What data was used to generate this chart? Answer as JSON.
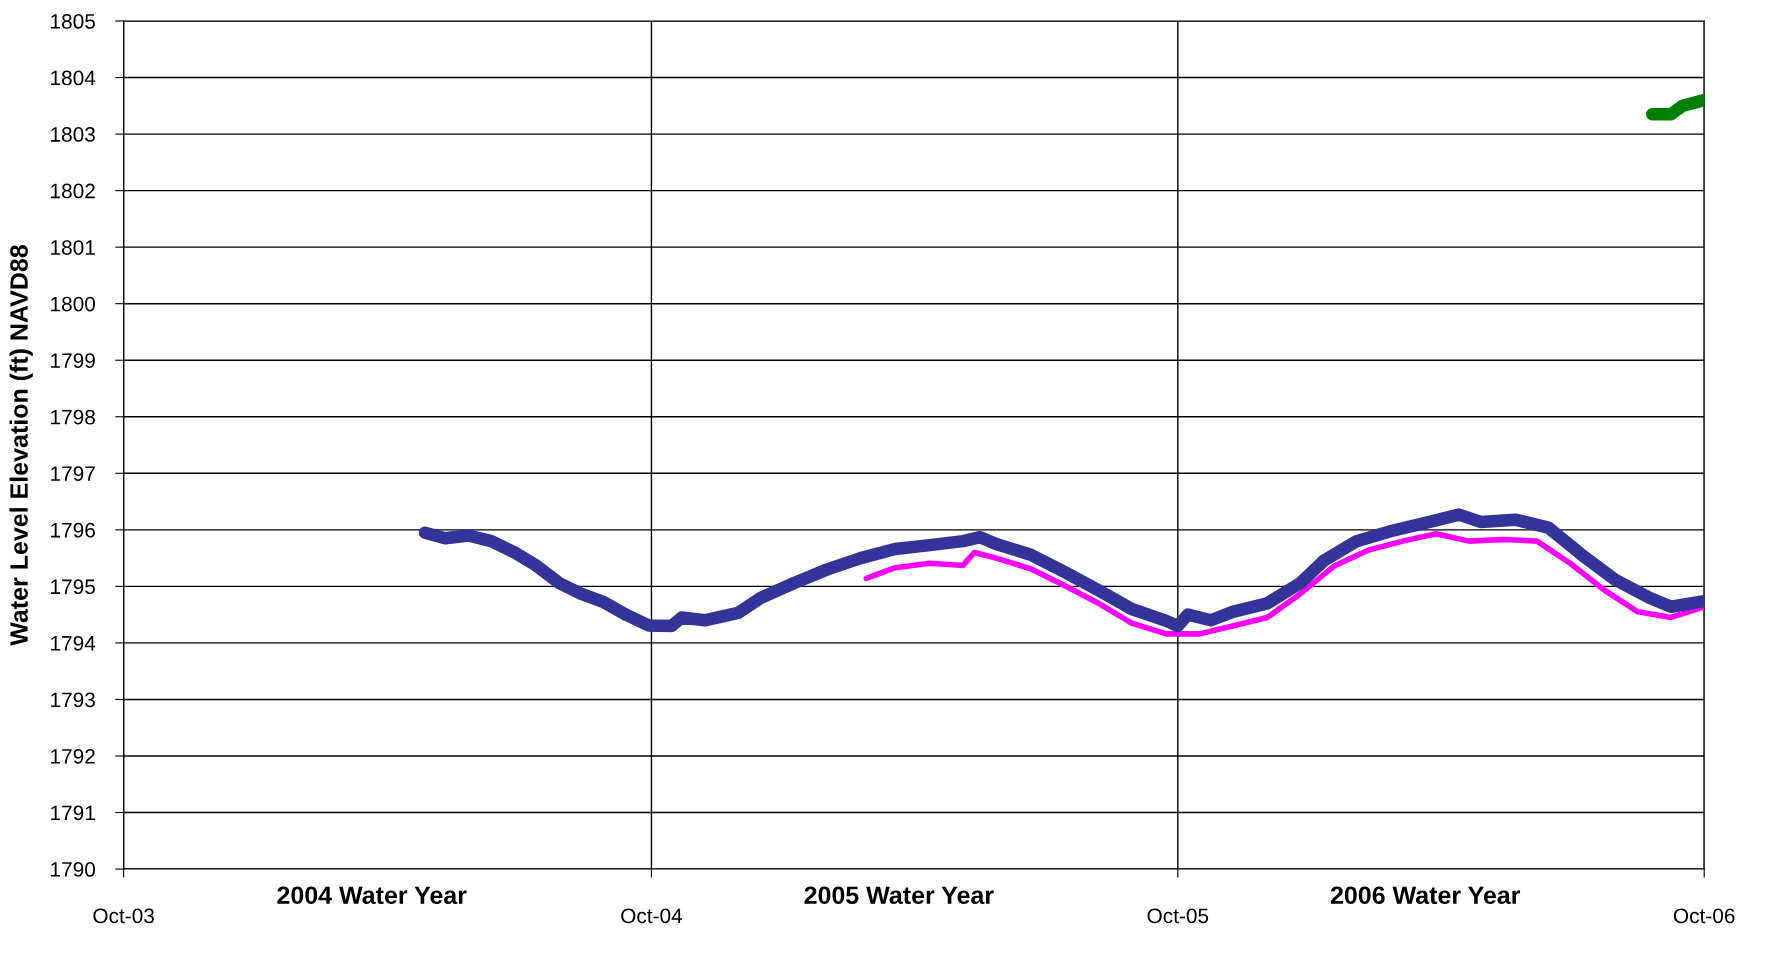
{
  "chart_data": {
    "type": "line",
    "ylabel": "Water Level Elevation (ft) NAVD88",
    "xlim": [
      "2003-10-01",
      "2006-10-01"
    ],
    "xticks": [
      {
        "value": "2003-10-01",
        "label": "Oct-03"
      },
      {
        "value": "2004-10-01",
        "label": "Oct-04"
      },
      {
        "value": "2005-10-01",
        "label": "Oct-05"
      },
      {
        "value": "2006-10-01",
        "label": "Oct-06"
      }
    ],
    "ylim": [
      1790,
      1805
    ],
    "yticks": [
      1790,
      1791,
      1792,
      1793,
      1794,
      1795,
      1796,
      1797,
      1798,
      1799,
      1800,
      1801,
      1802,
      1803,
      1804,
      1805
    ],
    "grid": true,
    "legend": false,
    "line_style": "solid",
    "marker": "none",
    "annotations": [
      "2004 Water Year",
      "2005 Water Year",
      "2006 Water Year"
    ],
    "series": [
      {
        "color": "#ff00ff",
        "x": [
          "2005-02-27",
          "2005-03-19",
          "2005-04-12",
          "2005-05-05",
          "2005-05-13",
          "2005-05-28",
          "2005-06-21",
          "2005-07-14",
          "2005-08-07",
          "2005-08-30",
          "2005-09-23",
          "2005-10-16",
          "2005-11-08",
          "2005-12-02",
          "2005-12-25",
          "2006-01-18",
          "2006-02-10",
          "2006-03-06",
          "2006-03-29",
          "2006-04-21",
          "2006-05-15",
          "2006-06-07",
          "2006-06-30",
          "2006-07-24",
          "2006-08-16",
          "2006-09-08",
          "2006-10-01"
        ],
        "values": [
          1795.14,
          1795.33,
          1795.41,
          1795.37,
          1795.6,
          1795.5,
          1795.31,
          1795.02,
          1794.7,
          1794.35,
          1794.16,
          1794.16,
          1794.3,
          1794.45,
          1794.87,
          1795.37,
          1795.64,
          1795.8,
          1795.93,
          1795.8,
          1795.83,
          1795.8,
          1795.41,
          1794.93,
          1794.55,
          1794.45,
          1794.64
        ]
      },
      {
        "color": "#333399",
        "x": [
          "2004-04-27",
          "2004-05-11",
          "2004-05-27",
          "2004-06-12",
          "2004-06-28",
          "2004-07-13",
          "2004-07-29",
          "2004-08-13",
          "2004-08-29",
          "2004-09-14",
          "2004-09-29",
          "2004-10-15",
          "2004-10-22",
          "2004-11-07",
          "2004-11-30",
          "2004-12-16",
          "2005-01-08",
          "2005-01-31",
          "2005-02-23",
          "2005-03-19",
          "2005-04-12",
          "2005-05-05",
          "2005-05-17",
          "2005-05-28",
          "2005-06-21",
          "2005-07-14",
          "2005-08-07",
          "2005-08-30",
          "2005-09-23",
          "2005-10-01",
          "2005-10-08",
          "2005-10-24",
          "2005-11-08",
          "2005-12-02",
          "2005-12-25",
          "2006-01-10",
          "2006-02-02",
          "2006-02-26",
          "2006-03-21",
          "2006-04-14",
          "2006-04-29",
          "2006-05-23",
          "2006-06-15",
          "2006-07-08",
          "2006-07-31",
          "2006-08-24",
          "2006-09-08",
          "2006-10-01"
        ],
        "values": [
          1795.95,
          1795.85,
          1795.9,
          1795.8,
          1795.6,
          1795.37,
          1795.06,
          1794.87,
          1794.72,
          1794.49,
          1794.31,
          1794.3,
          1794.45,
          1794.4,
          1794.53,
          1794.8,
          1795.06,
          1795.3,
          1795.5,
          1795.66,
          1795.73,
          1795.8,
          1795.87,
          1795.75,
          1795.56,
          1795.26,
          1794.93,
          1794.6,
          1794.39,
          1794.3,
          1794.5,
          1794.4,
          1794.55,
          1794.7,
          1795.06,
          1795.45,
          1795.8,
          1795.98,
          1796.12,
          1796.27,
          1796.14,
          1796.18,
          1796.04,
          1795.56,
          1795.12,
          1794.8,
          1794.64,
          1794.74
        ]
      },
      {
        "color": "#008000",
        "x": [
          "2006-08-26",
          "2006-09-08",
          "2006-09-16",
          "2006-10-01"
        ],
        "values": [
          1803.35,
          1803.35,
          1803.5,
          1803.6
        ]
      }
    ]
  }
}
